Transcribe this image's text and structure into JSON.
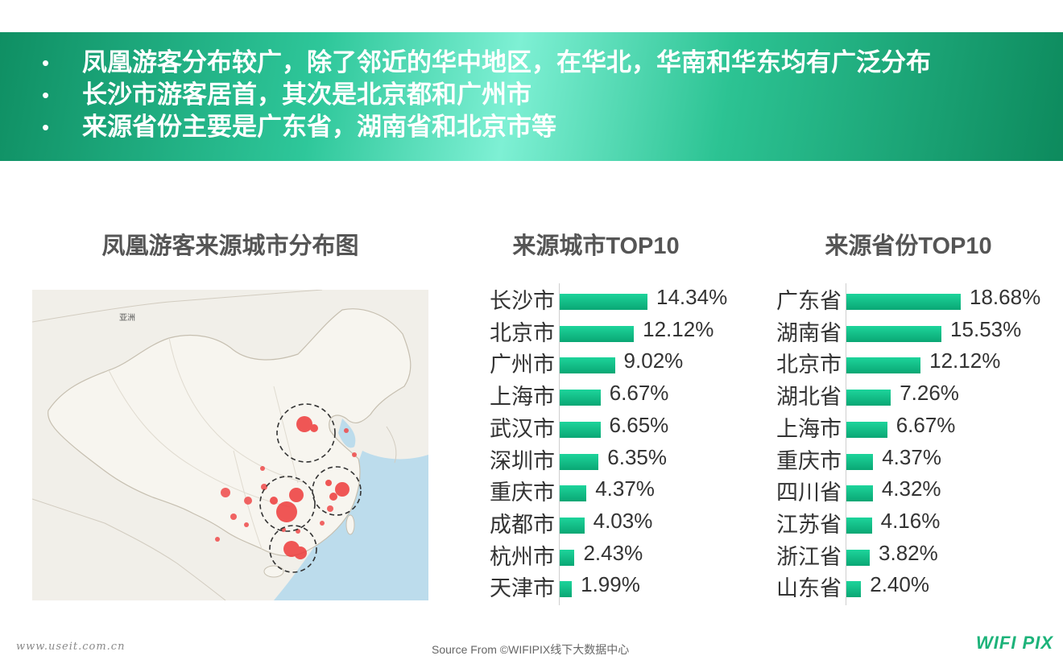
{
  "header": {
    "bullets": [
      "凤凰游客分布较广，除了邻近的华中地区，在华北，华南和华东均有广泛分布",
      "长沙市游客居首，其次是北京都和广州市",
      "来源省份主要是广东省，湖南省和北京市等"
    ],
    "bullet_symbol": "•"
  },
  "map": {
    "title": "凤凰游客来源城市分布图",
    "label_asia": "亚洲",
    "colors": {
      "land": "#f6f4ee",
      "water": "#b9d9ec",
      "border": "#c9c2b4",
      "dot": "#ef3a3a"
    }
  },
  "chart_data": [
    {
      "type": "bar",
      "title": "来源城市TOP10",
      "orientation": "horizontal",
      "categories": [
        "长沙市",
        "北京市",
        "广州市",
        "上海市",
        "武汉市",
        "深圳市",
        "重庆市",
        "成都市",
        "杭州市",
        "天津市"
      ],
      "values": [
        14.34,
        12.12,
        9.02,
        6.67,
        6.65,
        6.35,
        4.37,
        4.03,
        2.43,
        1.99
      ],
      "labels": [
        "14.34%",
        "12.12%",
        "9.02%",
        "6.67%",
        "6.65%",
        "6.35%",
        "4.37%",
        "4.03%",
        "2.43%",
        "1.99%"
      ],
      "max": 14.34,
      "color": "#10b981"
    },
    {
      "type": "bar",
      "title": "来源省份TOP10",
      "orientation": "horizontal",
      "categories": [
        "广东省",
        "湖南省",
        "北京市",
        "湖北省",
        "上海市",
        "重庆市",
        "四川省",
        "江苏省",
        "浙江省",
        "山东省"
      ],
      "values": [
        18.68,
        15.53,
        12.12,
        7.26,
        6.67,
        4.37,
        4.32,
        4.16,
        3.82,
        2.4
      ],
      "labels": [
        "18.68%",
        "15.53%",
        "12.12%",
        "7.26%",
        "6.67%",
        "4.37%",
        "4.32%",
        "4.16%",
        "3.82%",
        "2.40%"
      ],
      "max": 18.68,
      "color": "#10b981"
    }
  ],
  "footer": {
    "watermark": "www.useit.com.cn",
    "source": "Source From ©WIFIPIX线下大数据中心",
    "logo": "WIFI PIX"
  }
}
